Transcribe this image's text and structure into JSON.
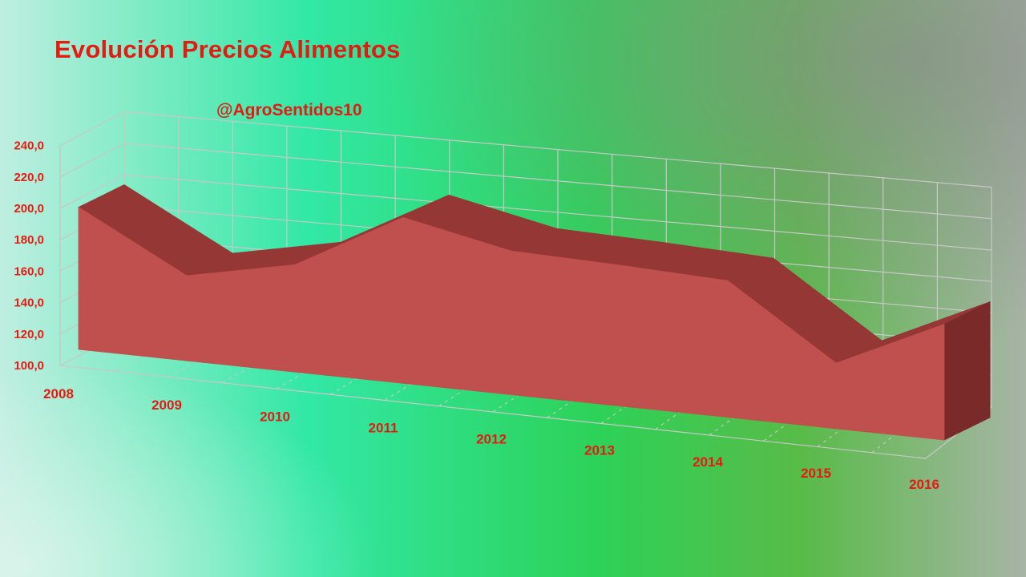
{
  "chart_data": {
    "type": "area",
    "title": "Evolución Precios Alimentos",
    "subtitle": "@AgroSentidos10",
    "categories": [
      "2008",
      "2009",
      "2010",
      "2011",
      "2012",
      "2013",
      "2014",
      "2015",
      "2016"
    ],
    "series": [
      {
        "values": [
          202,
          161,
          177,
          219,
          203,
          201,
          198,
          147,
          183
        ]
      }
    ],
    "ylim": [
      100,
      240
    ],
    "yticks": [
      "100,0",
      "120,0",
      "140,0",
      "160,0",
      "180,0",
      "200,0",
      "220,0",
      "240,0"
    ],
    "grid": true,
    "three_d": true,
    "colors": {
      "area_front": "#c0504d",
      "area_top": "#953735",
      "area_side": "#7a2a28",
      "labels": "#e41b13",
      "grid": "#c8c8c8"
    }
  }
}
